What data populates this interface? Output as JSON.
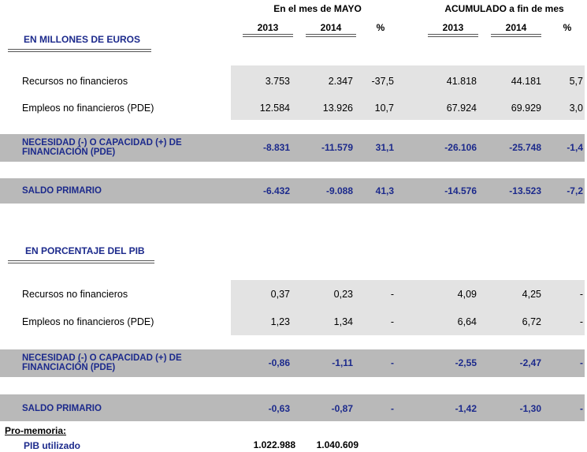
{
  "header": {
    "period_1": "En el mes de MAYO",
    "period_2": "ACUMULADO a fin de mes",
    "columns": [
      "2013",
      "2014",
      "%",
      "2013",
      "2014",
      "%"
    ]
  },
  "sections": [
    {
      "title": "EN MILLONES DE EUROS",
      "rows": [
        {
          "label": "Recursos no financieros",
          "values": [
            "3.753",
            "2.347",
            "-37,5",
            "41.818",
            "44.181",
            "5,7"
          ]
        },
        {
          "label": "Empleos no financieros (PDE)",
          "values": [
            "12.584",
            "13.926",
            "10,7",
            "67.924",
            "69.929",
            "3,0"
          ]
        },
        {
          "label": "NECESIDAD (-) O CAPACIDAD (+) DE FINANCIACIÓN (PDE)",
          "values": [
            "-8.831",
            "-11.579",
            "31,1",
            "-26.106",
            "-25.748",
            "-1,4"
          ]
        },
        {
          "label": "SALDO PRIMARIO",
          "values": [
            "-6.432",
            "-9.088",
            "41,3",
            "-14.576",
            "-13.523",
            "-7,2"
          ]
        }
      ]
    },
    {
      "title": "EN PORCENTAJE DEL PIB",
      "rows": [
        {
          "label": "Recursos no financieros",
          "values": [
            "0,37",
            "0,23",
            "-",
            "4,09",
            "4,25",
            "-"
          ]
        },
        {
          "label": "Empleos no financieros (PDE)",
          "values": [
            "1,23",
            "1,34",
            "-",
            "6,64",
            "6,72",
            "-"
          ]
        },
        {
          "label": "NECESIDAD (-) O CAPACIDAD (+) DE FINANCIACIÓN (PDE)",
          "values": [
            "-0,86",
            "-1,11",
            "-",
            "-2,55",
            "-2,47",
            "-"
          ]
        },
        {
          "label": "SALDO PRIMARIO",
          "values": [
            "-0,63",
            "-0,87",
            "-",
            "-1,42",
            "-1,30",
            "-"
          ]
        }
      ]
    }
  ],
  "memo": {
    "title": "Pro-memoria:",
    "label": "PIB utilizado",
    "values": [
      "1.022.988",
      "1.040.609"
    ]
  }
}
